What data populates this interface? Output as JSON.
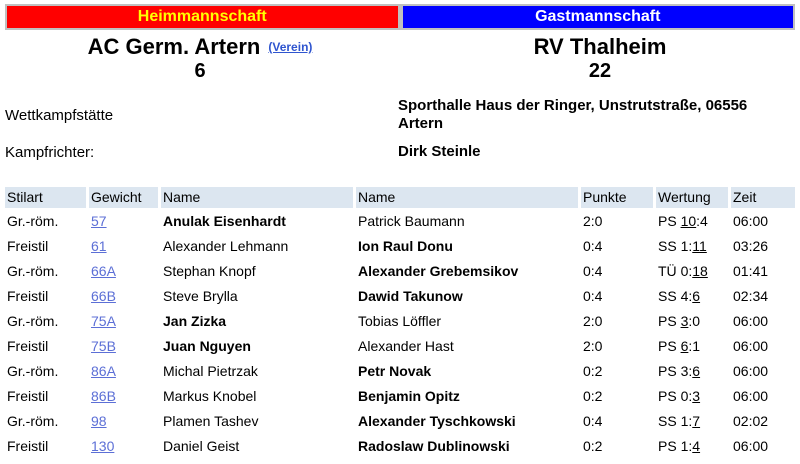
{
  "header": {
    "home_label": "Heimmannschaft",
    "guest_label": "Gastmannschaft",
    "home_bg": "#ff0000",
    "home_fg": "#ffff00",
    "guest_bg": "#0000ff",
    "guest_fg": "#ffffff",
    "frame_color": "#c0c0c0"
  },
  "teams": {
    "home": {
      "name": "AC Germ. Artern",
      "verein_link": "(Verein)",
      "score": "6"
    },
    "guest": {
      "name": "RV Thalheim",
      "score": "22"
    }
  },
  "info": {
    "venue_label": "Wettkampfstätte",
    "venue_value": "Sporthalle Haus der Ringer, Unstrutstraße, 06556 Artern",
    "referee_label": "Kampfrichter:",
    "referee_value": "Dirk Steinle"
  },
  "table": {
    "header_bg": "#dce6f0",
    "link_color": "#5c6fd6",
    "columns": [
      "Stilart",
      "Gewicht",
      "Name",
      "Name",
      "Punkte",
      "Wertung",
      "Zeit"
    ],
    "rows": [
      {
        "stilart": "Gr.-röm.",
        "gewicht": "57",
        "heim": "Anulak Eisenhardt",
        "gast": "Patrick Baumann",
        "winner": "heim",
        "punkte": "2:0",
        "wertung": {
          "code": "PS",
          "heim": "10",
          "gast": "4"
        },
        "zeit": "06:00"
      },
      {
        "stilart": "Freistil",
        "gewicht": "61",
        "heim": "Alexander Lehmann",
        "gast": "Ion Raul Donu",
        "winner": "gast",
        "punkte": "0:4",
        "wertung": {
          "code": "SS",
          "heim": "1",
          "gast": "11"
        },
        "zeit": "03:26"
      },
      {
        "stilart": "Gr.-röm.",
        "gewicht": "66A",
        "heim": "Stephan Knopf",
        "gast": "Alexander Grebemsikov",
        "winner": "gast",
        "punkte": "0:4",
        "wertung": {
          "code": "TÜ",
          "heim": "0",
          "gast": "18"
        },
        "zeit": "01:41"
      },
      {
        "stilart": "Freistil",
        "gewicht": "66B",
        "heim": "Steve Brylla",
        "gast": "Dawid Takunow",
        "winner": "gast",
        "punkte": "0:4",
        "wertung": {
          "code": "SS",
          "heim": "4",
          "gast": "6"
        },
        "zeit": "02:34"
      },
      {
        "stilart": "Gr.-röm.",
        "gewicht": "75A",
        "heim": "Jan Zizka",
        "gast": "Tobias Löffler",
        "winner": "heim",
        "punkte": "2:0",
        "wertung": {
          "code": "PS",
          "heim": "3",
          "gast": "0"
        },
        "zeit": "06:00"
      },
      {
        "stilart": "Freistil",
        "gewicht": "75B",
        "heim": "Juan Nguyen",
        "gast": "Alexander Hast",
        "winner": "heim",
        "punkte": "2:0",
        "wertung": {
          "code": "PS",
          "heim": "6",
          "gast": "1"
        },
        "zeit": "06:00"
      },
      {
        "stilart": "Gr.-röm.",
        "gewicht": "86A",
        "heim": "Michal Pietrzak",
        "gast": "Petr Novak",
        "winner": "gast",
        "punkte": "0:2",
        "wertung": {
          "code": "PS",
          "heim": "3",
          "gast": "6"
        },
        "zeit": "06:00"
      },
      {
        "stilart": "Freistil",
        "gewicht": "86B",
        "heim": "Markus Knobel",
        "gast": "Benjamin Opitz",
        "winner": "gast",
        "punkte": "0:2",
        "wertung": {
          "code": "PS",
          "heim": "0",
          "gast": "3"
        },
        "zeit": "06:00"
      },
      {
        "stilart": "Gr.-röm.",
        "gewicht": "98",
        "heim": "Plamen Tashev",
        "gast": "Alexander Tyschkowski",
        "winner": "gast",
        "punkte": "0:4",
        "wertung": {
          "code": "SS",
          "heim": "1",
          "gast": "7"
        },
        "zeit": "02:02"
      },
      {
        "stilart": "Freistil",
        "gewicht": "130",
        "heim": "Daniel Geist",
        "gast": "Radoslaw Dublinowski",
        "winner": "gast",
        "punkte": "0:2",
        "wertung": {
          "code": "PS",
          "heim": "1",
          "gast": "4"
        },
        "zeit": "06:00"
      }
    ]
  }
}
